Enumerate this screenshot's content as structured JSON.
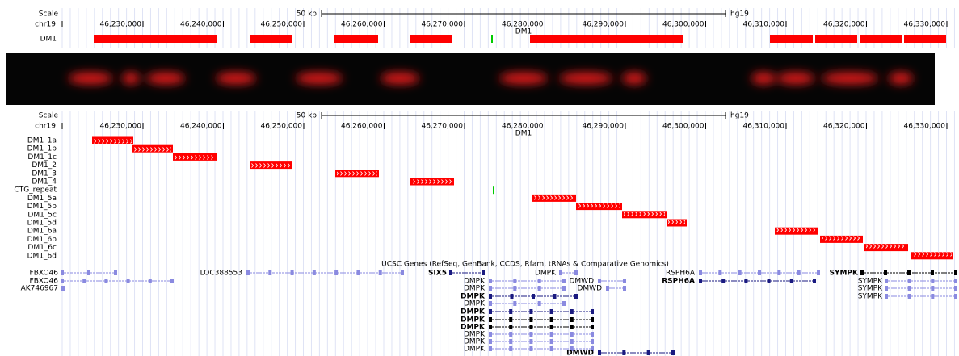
{
  "top_panel": {
    "scale_label": "Scale",
    "scale_text": "50 kb",
    "assembly": "hg19",
    "chrom": "chr19:",
    "positions": [
      "46,230,000",
      "46,240,000",
      "46,250,000",
      "46,260,000",
      "46,270,000",
      "46,280,000",
      "46,290,000",
      "46,300,000",
      "46,310,000",
      "46,320,000",
      "46,330,000"
    ],
    "region_label": "DM1",
    "track_label": "DM1"
  },
  "bottom_panel": {
    "scale_label": "Scale",
    "scale_text": "50 kb",
    "assembly": "hg19",
    "chrom": "chr19:",
    "positions": [
      "46,230,000",
      "46,240,000",
      "46,250,000",
      "46,260,000",
      "46,270,000",
      "46,280,000",
      "46,290,000",
      "46,300,000",
      "46,310,000",
      "46,320,000",
      "46,330,000"
    ],
    "region_label": "DM1",
    "tracks": [
      "DM1_1a",
      "DM1_1b",
      "DM1_1c",
      "DM1_2",
      "DM1_3",
      "DM1_4",
      "CTG_repeat",
      "DM1_5a",
      "DM1_5b",
      "DM1_5c",
      "DM1_5d",
      "DM1_6a",
      "DM1_6b",
      "DM1_6c",
      "DM1_6d"
    ],
    "genes_title": "UCSC Genes (RefSeq, GenBank, CCDS, Rfam, tRNAs & Comparative Genomics)",
    "gene_labels": [
      "FBXO46",
      "LOC388553",
      "SIX5",
      "DMPK",
      "RSPH6A",
      "SYMPK",
      "FBXO46",
      "DMPK",
      "DMWD",
      "RSPH6A",
      "SYMPK",
      "AK746967",
      "DMPK",
      "DMWD",
      "SYMPK",
      "DMPK",
      "SYMPK",
      "DMPK",
      "DMPK",
      "DMPK",
      "DMPK",
      "DMPK",
      "DMPK",
      "DMPK",
      "DMWD"
    ]
  }
}
